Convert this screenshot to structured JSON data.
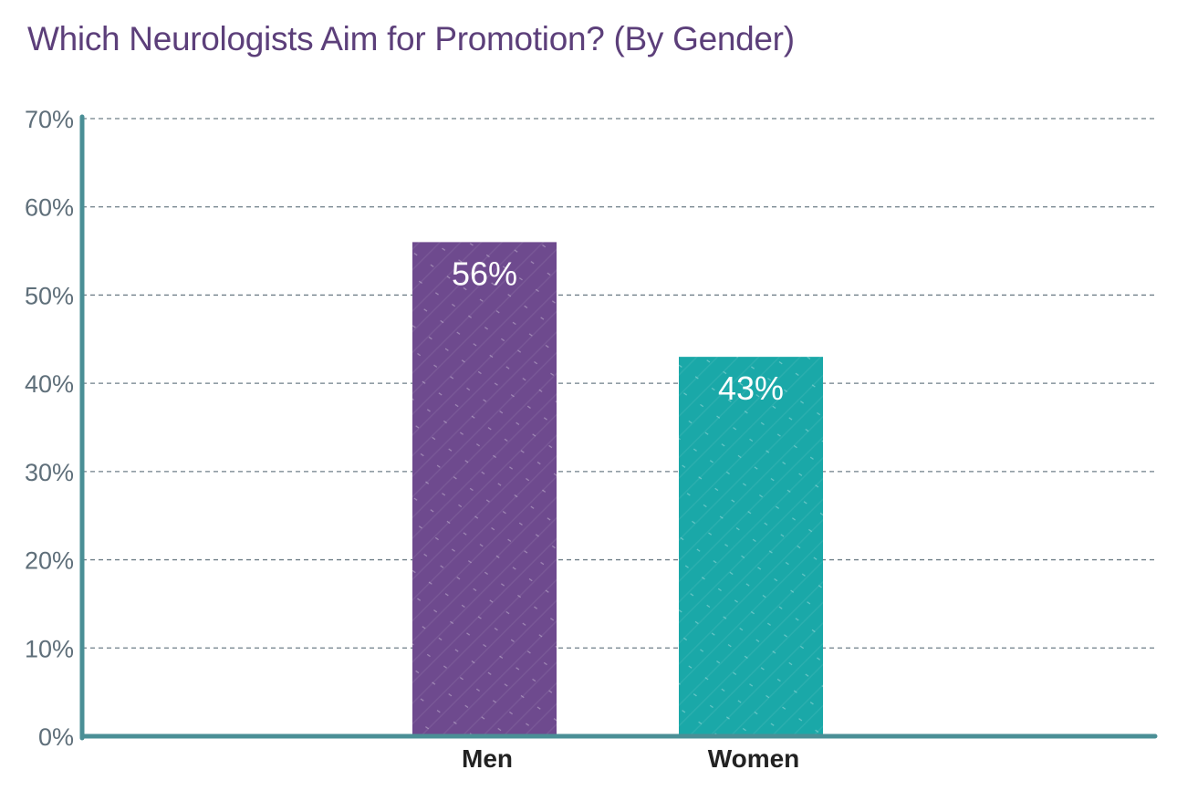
{
  "chart_data": {
    "type": "bar",
    "title": "Which Neurologists Aim for Promotion? (By Gender)",
    "xlabel": "",
    "ylabel": "",
    "categories": [
      "Men",
      "Women"
    ],
    "values": [
      56,
      43
    ],
    "data_labels": [
      "56%",
      "43%"
    ],
    "ylim": [
      0,
      70
    ],
    "yticks": [
      0,
      10,
      20,
      30,
      40,
      50,
      60,
      70
    ],
    "ytick_labels": [
      "0%",
      "10%",
      "20%",
      "30%",
      "40%",
      "50%",
      "60%",
      "70%"
    ],
    "grid": true,
    "legend": "none",
    "colors": [
      "#6e4a8e",
      "#1aa8a8"
    ],
    "axis_color": "#4a8f96",
    "grid_color": "#6f7f88",
    "title_color": "#5c3f7a"
  }
}
